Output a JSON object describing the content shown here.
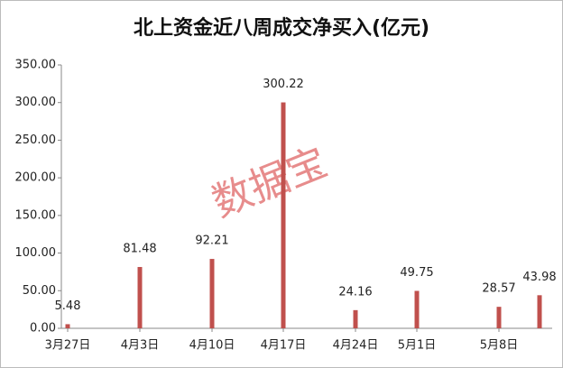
{
  "chart_data": {
    "type": "bar",
    "title": "北上资金近八周成交净买入(亿元)",
    "watermark": "数据宝",
    "categories": [
      "3月27日",
      "4月3日",
      "4月10日",
      "4月17日",
      "4月24日",
      "5月1日",
      "5月8日",
      null
    ],
    "values": [
      5.48,
      81.48,
      92.21,
      300.22,
      24.16,
      49.75,
      28.57,
      43.98
    ],
    "color": "#c0504d",
    "ylim": [
      0,
      350
    ],
    "yticks": [
      {
        "value": 0,
        "label": "0.00"
      },
      {
        "value": 50,
        "label": "50.00"
      },
      {
        "value": 100,
        "label": "100.00"
      },
      {
        "value": 150,
        "label": "150.00"
      },
      {
        "value": 200,
        "label": "200.00"
      },
      {
        "value": 250,
        "label": "250.00"
      },
      {
        "value": 300,
        "label": "300.00"
      },
      {
        "value": 350,
        "label": "350.00"
      }
    ],
    "grid": false
  }
}
